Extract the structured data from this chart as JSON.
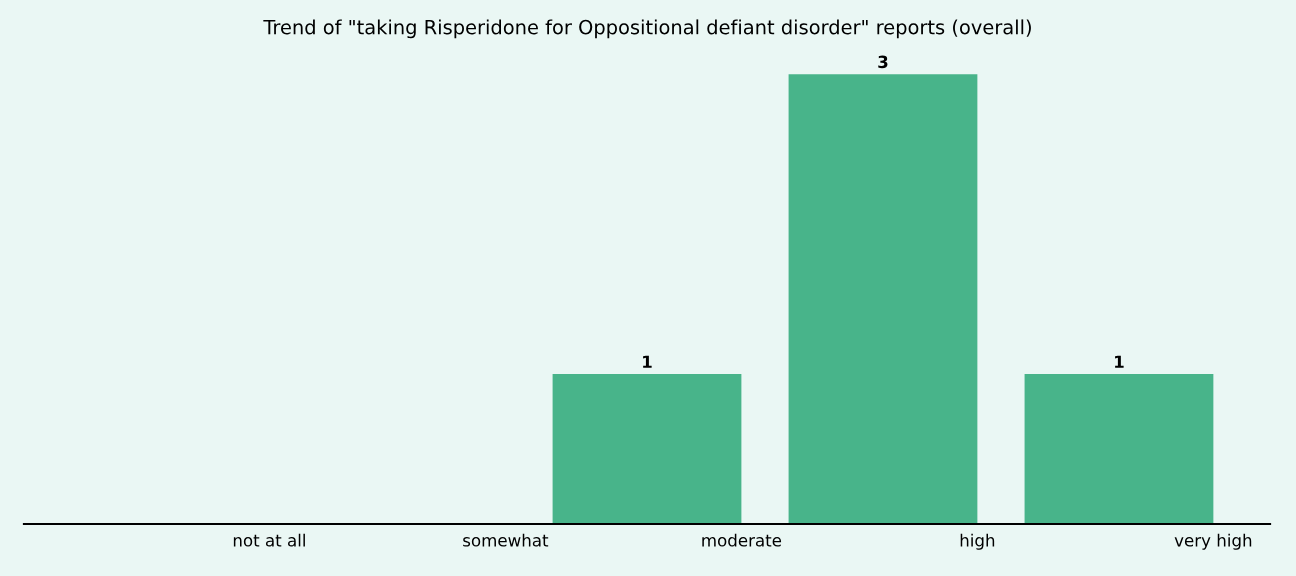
{
  "chart_data": {
    "type": "bar",
    "title": "Trend of \"taking Risperidone for Oppositional defiant disorder\" reports (overall)",
    "categories": [
      "not at all",
      "somewhat",
      "moderate",
      "high",
      "very high"
    ],
    "values": [
      0,
      0,
      1,
      3,
      1
    ],
    "value_labels": [
      null,
      null,
      "1",
      "3",
      "1"
    ],
    "color": "#48b48a",
    "grid": false,
    "legend": false,
    "tick_labels": "x"
  }
}
